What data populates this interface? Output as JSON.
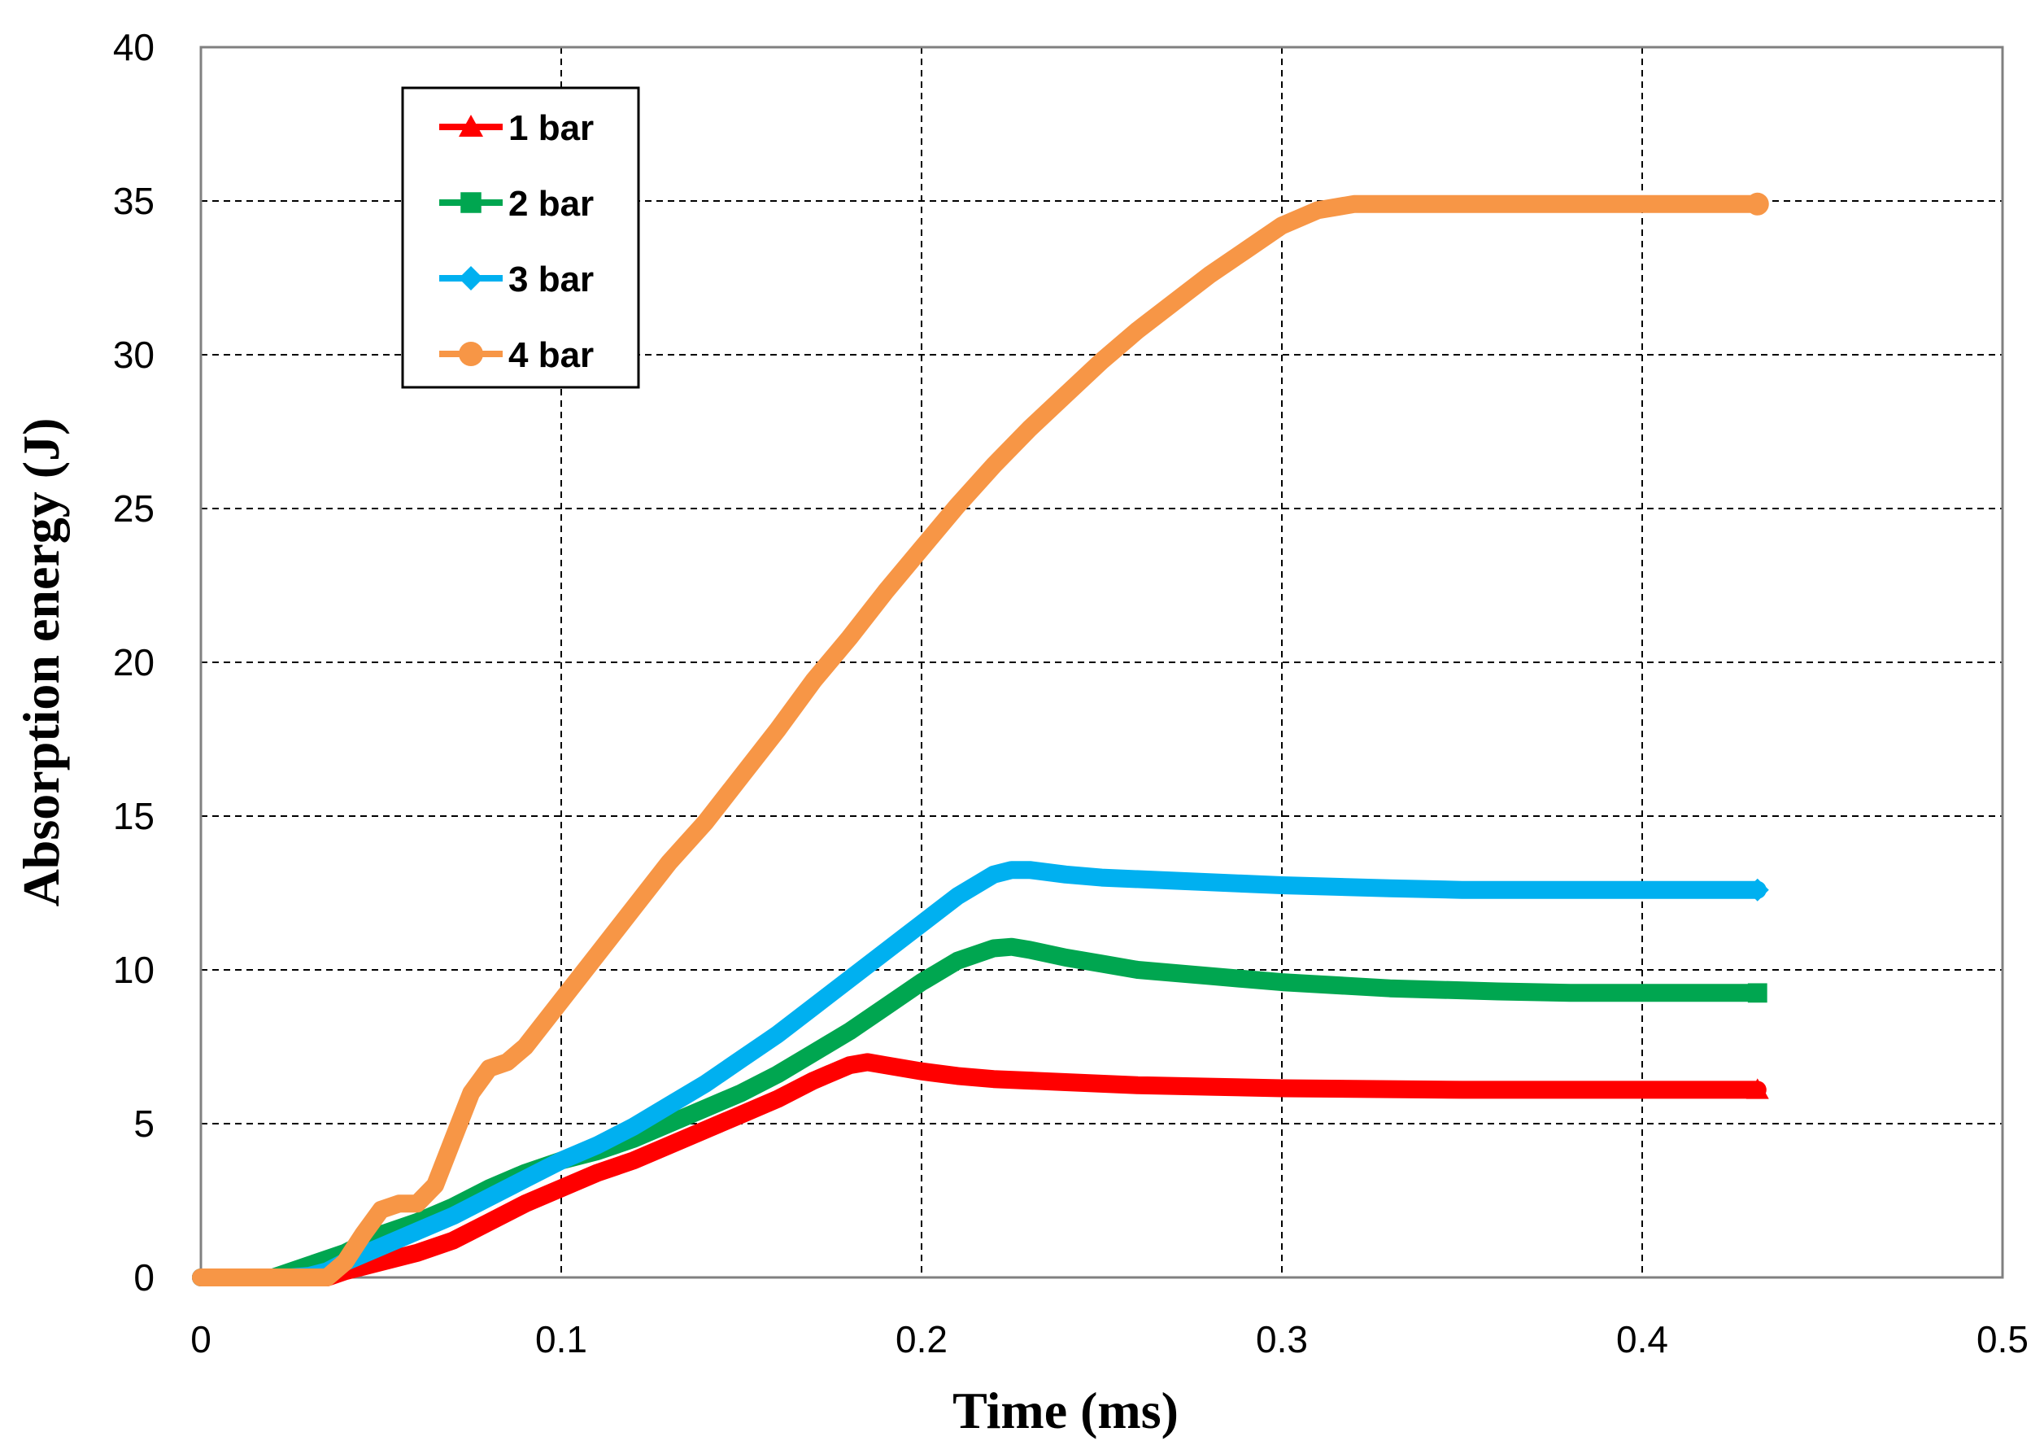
{
  "chart_data": {
    "type": "line",
    "title": "",
    "xlabel": "Time (ms)",
    "ylabel": "Absorption energy (J)",
    "xlim": [
      0,
      0.5
    ],
    "ylim": [
      0,
      40
    ],
    "xticks": [
      "0",
      "0.1",
      "0.2",
      "0.3",
      "0.4",
      "0.5"
    ],
    "yticks": [
      "0",
      "5",
      "10",
      "15",
      "20",
      "25",
      "30",
      "35",
      "40"
    ],
    "grid": true,
    "legend_position": "top-left",
    "series": [
      {
        "name": "1 bar",
        "color": "#ff0000",
        "marker": "triangle",
        "x": [
          0,
          0.02,
          0.035,
          0.04,
          0.05,
          0.06,
          0.07,
          0.08,
          0.09,
          0.1,
          0.11,
          0.12,
          0.13,
          0.14,
          0.15,
          0.16,
          0.17,
          0.18,
          0.185,
          0.19,
          0.2,
          0.21,
          0.22,
          0.24,
          0.26,
          0.28,
          0.3,
          0.35,
          0.4,
          0.432
        ],
        "y": [
          0,
          0,
          0,
          0.2,
          0.5,
          0.8,
          1.2,
          1.8,
          2.4,
          2.9,
          3.4,
          3.8,
          4.3,
          4.8,
          5.3,
          5.8,
          6.4,
          6.9,
          7.0,
          6.9,
          6.7,
          6.55,
          6.45,
          6.35,
          6.25,
          6.2,
          6.15,
          6.1,
          6.1,
          6.1
        ]
      },
      {
        "name": "2 bar",
        "color": "#00a650",
        "marker": "square",
        "x": [
          0,
          0.02,
          0.03,
          0.04,
          0.05,
          0.06,
          0.07,
          0.08,
          0.09,
          0.1,
          0.11,
          0.12,
          0.13,
          0.14,
          0.15,
          0.16,
          0.17,
          0.18,
          0.19,
          0.2,
          0.21,
          0.22,
          0.225,
          0.23,
          0.24,
          0.25,
          0.26,
          0.28,
          0.3,
          0.33,
          0.36,
          0.38,
          0.4,
          0.432
        ],
        "y": [
          0,
          0,
          0.4,
          0.8,
          1.4,
          1.8,
          2.3,
          2.9,
          3.4,
          3.8,
          4.1,
          4.5,
          5.0,
          5.5,
          6.0,
          6.6,
          7.3,
          8.0,
          8.8,
          9.6,
          10.3,
          10.7,
          10.75,
          10.65,
          10.4,
          10.2,
          10.0,
          9.8,
          9.6,
          9.4,
          9.3,
          9.25,
          9.25,
          9.25
        ]
      },
      {
        "name": "3 bar",
        "color": "#00b0f0",
        "marker": "diamond",
        "x": [
          0,
          0.025,
          0.03,
          0.035,
          0.04,
          0.05,
          0.06,
          0.07,
          0.08,
          0.09,
          0.1,
          0.11,
          0.12,
          0.13,
          0.14,
          0.15,
          0.16,
          0.17,
          0.18,
          0.19,
          0.2,
          0.21,
          0.22,
          0.225,
          0.23,
          0.24,
          0.25,
          0.27,
          0.3,
          0.33,
          0.35,
          0.4,
          0.432
        ],
        "y": [
          0,
          0,
          0.05,
          0.2,
          0.5,
          1.0,
          1.5,
          2.0,
          2.6,
          3.2,
          3.8,
          4.3,
          4.9,
          5.6,
          6.3,
          7.1,
          7.9,
          8.8,
          9.7,
          10.6,
          11.5,
          12.4,
          13.1,
          13.25,
          13.25,
          13.1,
          13.0,
          12.9,
          12.75,
          12.65,
          12.6,
          12.6,
          12.6
        ]
      },
      {
        "name": "4 bar",
        "color": "#f79646",
        "marker": "circle",
        "x": [
          0,
          0.02,
          0.035,
          0.04,
          0.045,
          0.05,
          0.055,
          0.06,
          0.065,
          0.07,
          0.075,
          0.08,
          0.085,
          0.09,
          0.1,
          0.11,
          0.12,
          0.13,
          0.14,
          0.15,
          0.16,
          0.17,
          0.18,
          0.19,
          0.2,
          0.21,
          0.22,
          0.23,
          0.24,
          0.25,
          0.26,
          0.27,
          0.28,
          0.29,
          0.3,
          0.31,
          0.32,
          0.35,
          0.4,
          0.432
        ],
        "y": [
          0,
          0,
          0,
          0.5,
          1.4,
          2.2,
          2.4,
          2.4,
          3.0,
          4.5,
          6.0,
          6.8,
          7.0,
          7.5,
          9.0,
          10.5,
          12.0,
          13.5,
          14.8,
          16.3,
          17.8,
          19.4,
          20.8,
          22.3,
          23.7,
          25.1,
          26.4,
          27.6,
          28.7,
          29.8,
          30.8,
          31.7,
          32.6,
          33.4,
          34.2,
          34.7,
          34.9,
          34.9,
          34.9,
          34.9
        ]
      }
    ]
  }
}
